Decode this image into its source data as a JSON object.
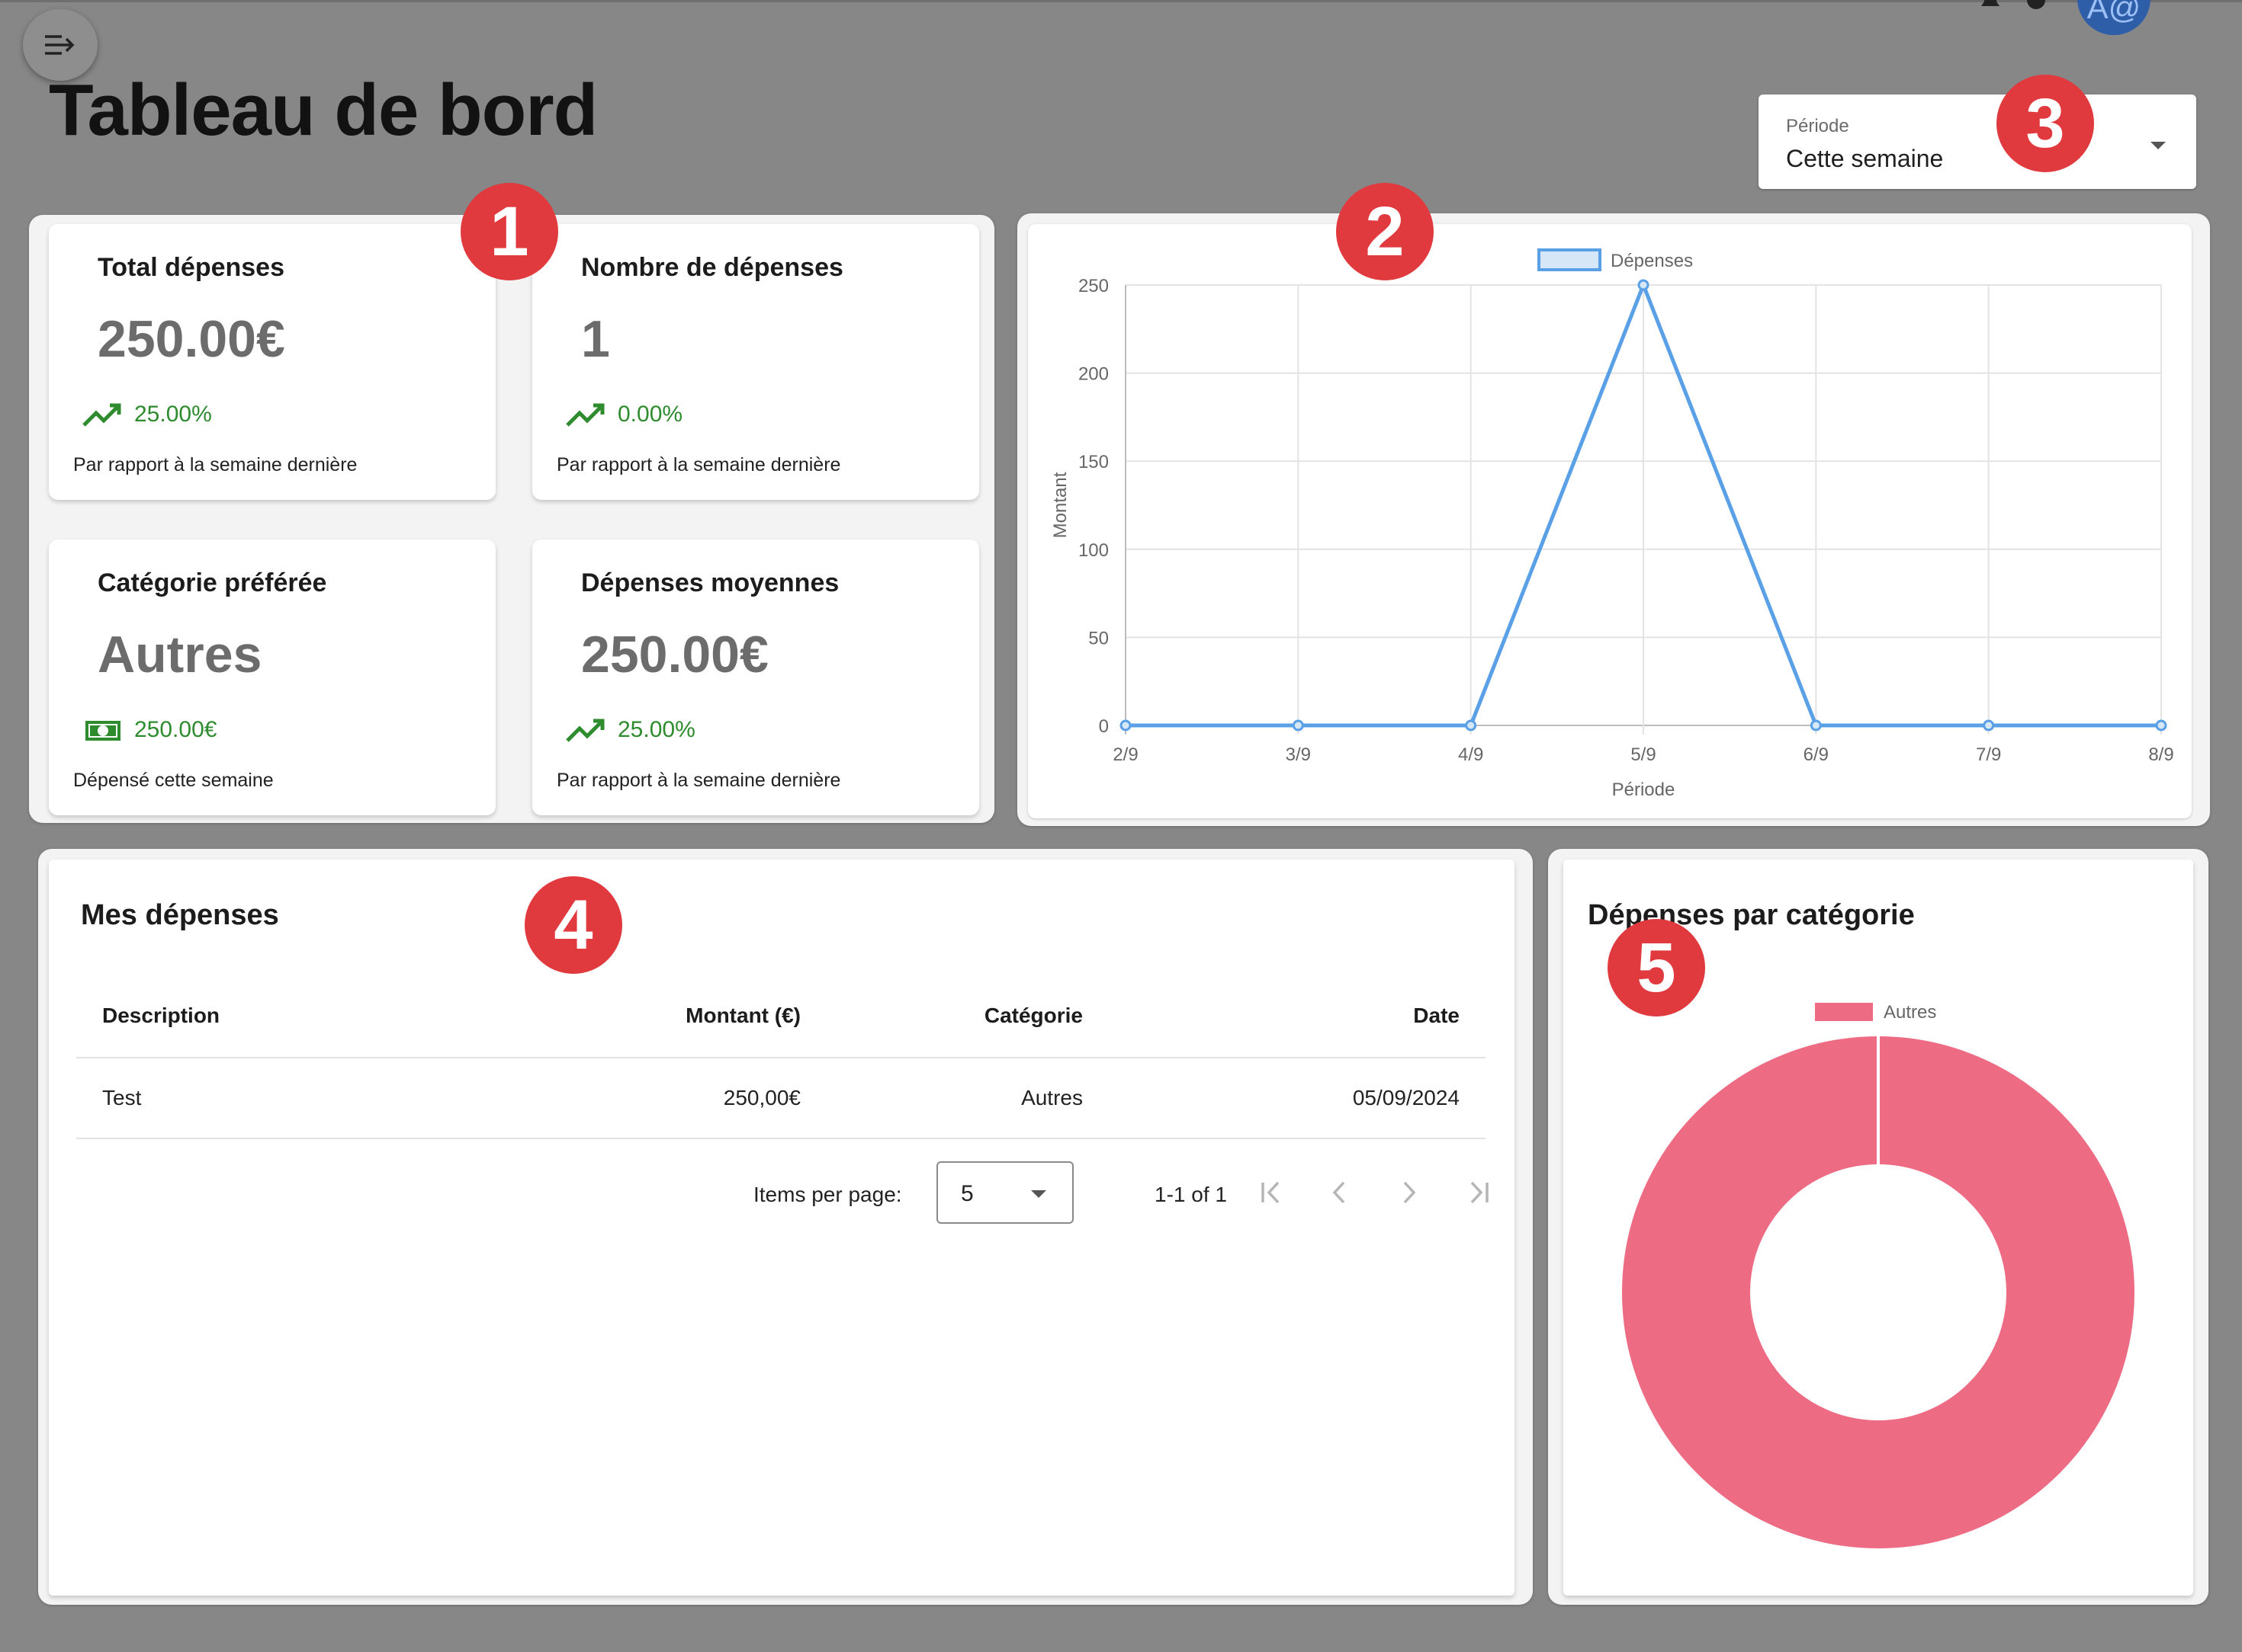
{
  "page": {
    "title": "Tableau de bord",
    "menu_icon": "menu-open-icon",
    "user_initials": "A@"
  },
  "period_select": {
    "label": "Période",
    "value": "Cette semaine"
  },
  "badges": [
    "1",
    "2",
    "3",
    "4",
    "5"
  ],
  "stats": [
    {
      "title": "Total dépenses",
      "value": "250.00€",
      "trend": "25.00%",
      "trend_icon": "trending-up-icon",
      "caption": "Par rapport à la semaine dernière"
    },
    {
      "title": "Nombre de dépenses",
      "value": "1",
      "trend": "0.00%",
      "trend_icon": "trending-up-icon",
      "caption": "Par rapport à la semaine dernière"
    },
    {
      "title": "Catégorie préférée",
      "value": "Autres",
      "trend": "250.00€",
      "trend_icon": "money-icon",
      "caption": "Dépensé cette semaine"
    },
    {
      "title": "Dépenses moyennes",
      "value": "250.00€",
      "trend": "25.00%",
      "trend_icon": "trending-up-icon",
      "caption": "Par rapport à la semaine dernière"
    }
  ],
  "expenses_table": {
    "title": "Mes dépenses",
    "columns": [
      "Description",
      "Montant (€)",
      "Catégorie",
      "Date"
    ],
    "rows": [
      {
        "description": "Test",
        "amount": "250,00€",
        "category": "Autres",
        "date": "05/09/2024"
      }
    ],
    "items_per_page_label": "Items per page:",
    "items_per_page": "5",
    "range": "1-1 of 1"
  },
  "category_panel": {
    "title": "Dépenses par catégorie"
  },
  "colors": {
    "accent_red": "#e0393e",
    "line": "#5aa0e6",
    "donut": "#ee6b84",
    "trend_green": "#2e8b2e"
  },
  "chart_data": [
    {
      "type": "line",
      "title": "",
      "xlabel": "Période",
      "ylabel": "Montant",
      "categories": [
        "2/9",
        "3/9",
        "4/9",
        "5/9",
        "6/9",
        "7/9",
        "8/9"
      ],
      "series": [
        {
          "name": "Dépenses",
          "values": [
            0,
            0,
            0,
            250,
            0,
            0,
            0
          ]
        }
      ],
      "ylim": [
        0,
        250
      ],
      "yticks": [
        0,
        50,
        100,
        150,
        200,
        250
      ],
      "grid": true,
      "legend": "top-center"
    },
    {
      "type": "pie",
      "title": "",
      "categories": [
        "Autres"
      ],
      "values": [
        250
      ],
      "donut": true,
      "legend": "top-center"
    }
  ]
}
